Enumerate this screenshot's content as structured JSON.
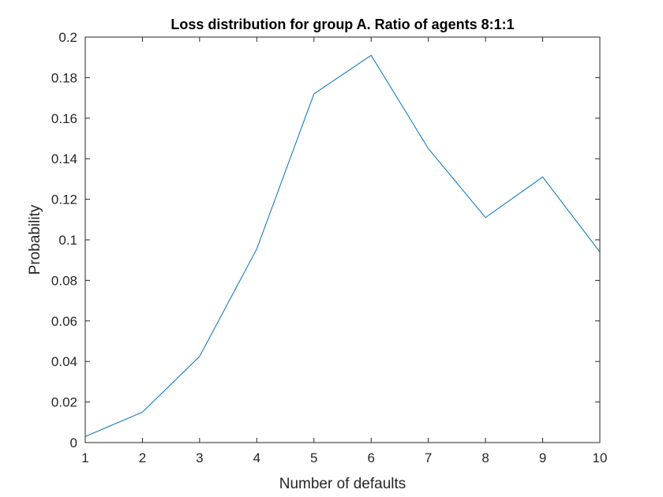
{
  "colors": {
    "background": "#ffffff",
    "axes": "#262626",
    "series_line": "#0072BD",
    "title": "#000000"
  },
  "chart_data": {
    "type": "line",
    "title": "Loss distribution for group A. Ratio of agents 8:1:1",
    "xlabel": "Number of defaults",
    "ylabel": "Probability",
    "xlim": [
      1,
      10
    ],
    "ylim": [
      0,
      0.2
    ],
    "xticks": [
      1,
      2,
      3,
      4,
      5,
      6,
      7,
      8,
      9,
      10
    ],
    "yticks": [
      0,
      0.02,
      0.04,
      0.06,
      0.08,
      0.1,
      0.12,
      0.14,
      0.16,
      0.18,
      0.2
    ],
    "xtick_labels": [
      "1",
      "2",
      "3",
      "4",
      "5",
      "6",
      "7",
      "8",
      "9",
      "10"
    ],
    "ytick_labels": [
      "0",
      "0.02",
      "0.04",
      "0.06",
      "0.08",
      "0.1",
      "0.12",
      "0.14",
      "0.16",
      "0.18",
      "0.2"
    ],
    "grid": false,
    "box": true,
    "series": [
      {
        "x": [
          1,
          2,
          3,
          4,
          5,
          6,
          7,
          8,
          9,
          10
        ],
        "values": [
          0.003,
          0.015,
          0.0425,
          0.0955,
          0.172,
          0.191,
          0.145,
          0.111,
          0.131,
          0.094
        ]
      }
    ]
  }
}
